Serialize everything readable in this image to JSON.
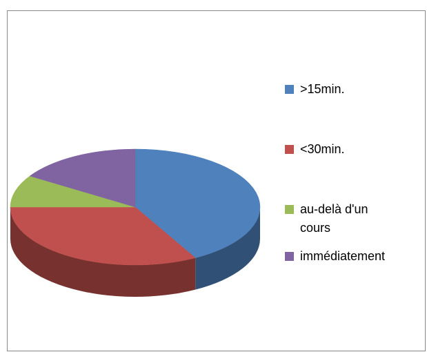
{
  "chart_data": {
    "type": "pie",
    "categories": [
      ">15min.",
      "<30min.",
      "au-delà d'un cours",
      "immédiatement"
    ],
    "values": [
      42,
      33,
      9,
      16
    ],
    "colors": [
      "#4f81bd",
      "#c0504d",
      "#9bbb59",
      "#8064a2"
    ],
    "legend": "right"
  }
}
